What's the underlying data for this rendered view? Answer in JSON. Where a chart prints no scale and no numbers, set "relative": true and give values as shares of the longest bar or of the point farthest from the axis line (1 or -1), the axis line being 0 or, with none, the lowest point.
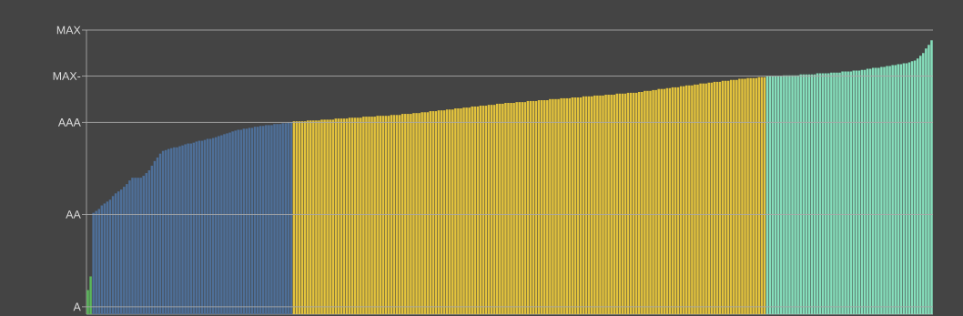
{
  "chart_data": {
    "type": "bar",
    "relative": true,
    "ref_lines": [
      {
        "axis": "y",
        "value": 0.027,
        "label": "A",
        "color": "#a8a8a8"
      },
      {
        "axis": "y",
        "value": 0.364,
        "label": "AA",
        "color": "#a8a8a8"
      },
      {
        "axis": "y",
        "value": 0.7,
        "label": "AAA",
        "color": "#a8a8a8"
      },
      {
        "axis": "y",
        "value": 0.869,
        "label": "MAX-",
        "color": "#a8a8a8"
      },
      {
        "axis": "y",
        "value": 1.037,
        "label": "MAX",
        "color": "#a8a8a8"
      }
    ],
    "categories": [
      null,
      null,
      null,
      null,
      null,
      null,
      null,
      null,
      null,
      null,
      null,
      null,
      null,
      null,
      null,
      null,
      null,
      null,
      null,
      null,
      null,
      null,
      null,
      null,
      null,
      null,
      null,
      null,
      null,
      null,
      null,
      null,
      null,
      null,
      null,
      null,
      null,
      null,
      null,
      null,
      null,
      null,
      null,
      null,
      null,
      null,
      null,
      null,
      null,
      null,
      null,
      null,
      null,
      null,
      null,
      null,
      null,
      null,
      null,
      null,
      null,
      null,
      null,
      null,
      null,
      null,
      null,
      null,
      null,
      null,
      null,
      null,
      null,
      null,
      null,
      null,
      null,
      null,
      null,
      null,
      null,
      null,
      null,
      null,
      null,
      null,
      null,
      null,
      null,
      null,
      null,
      null,
      null,
      null,
      null,
      null,
      null,
      null,
      null,
      null,
      null,
      null,
      null,
      null,
      null,
      null,
      null,
      null,
      null,
      null,
      null,
      null,
      null,
      null,
      null,
      null,
      null,
      null,
      null,
      null,
      null,
      null,
      null,
      null,
      null,
      null,
      null,
      null,
      null,
      null,
      null,
      null,
      null,
      null,
      null,
      null,
      null,
      null,
      null,
      null,
      null,
      null,
      null,
      null,
      null,
      null,
      null,
      null,
      null,
      null,
      null,
      null,
      null,
      null,
      null,
      null,
      null,
      null,
      null,
      null,
      null,
      null,
      null,
      null,
      null,
      null,
      null,
      null,
      null,
      null,
      null,
      null,
      null,
      null,
      null,
      null,
      null,
      null,
      null,
      null,
      null,
      null,
      null,
      null,
      null,
      null,
      null,
      null,
      null,
      null,
      null,
      null,
      null,
      null,
      null,
      null,
      null,
      null,
      null,
      null,
      null,
      null,
      null,
      null,
      null,
      null,
      null,
      null,
      null,
      null,
      null,
      null,
      null,
      null,
      null,
      null,
      null,
      null,
      null,
      null,
      null,
      null,
      null,
      null,
      null,
      null,
      null,
      null,
      null,
      null,
      null,
      null,
      null,
      null,
      null,
      null,
      null,
      null,
      null,
      null,
      null,
      null,
      null,
      null,
      null,
      null,
      null,
      null,
      null,
      null,
      null,
      null,
      null,
      null,
      null,
      null,
      null,
      null,
      null,
      null,
      null,
      null,
      null,
      null,
      null,
      null,
      null,
      null,
      null,
      null,
      null,
      null,
      null,
      null,
      null,
      null,
      null,
      null,
      null,
      null,
      null,
      null,
      null,
      null,
      null,
      null,
      null,
      null,
      null,
      null,
      null,
      null,
      null,
      null,
      null,
      null,
      null,
      null,
      null,
      null,
      null,
      null,
      null,
      null
    ],
    "values": [
      0.088,
      0.138,
      0.37,
      0.377,
      0.384,
      0.397,
      0.404,
      0.411,
      0.418,
      0.431,
      0.441,
      0.448,
      0.455,
      0.465,
      0.475,
      0.488,
      0.498,
      0.498,
      0.498,
      0.498,
      0.505,
      0.515,
      0.525,
      0.542,
      0.559,
      0.572,
      0.586,
      0.596,
      0.599,
      0.603,
      0.606,
      0.609,
      0.609,
      0.613,
      0.616,
      0.62,
      0.623,
      0.623,
      0.626,
      0.63,
      0.633,
      0.633,
      0.636,
      0.64,
      0.64,
      0.643,
      0.646,
      0.65,
      0.653,
      0.657,
      0.66,
      0.663,
      0.667,
      0.67,
      0.673,
      0.673,
      0.677,
      0.677,
      0.68,
      0.68,
      0.684,
      0.684,
      0.687,
      0.687,
      0.69,
      0.69,
      0.69,
      0.694,
      0.694,
      0.694,
      0.697,
      0.697,
      0.7,
      0.7,
      0.704,
      0.704,
      0.704,
      0.704,
      0.704,
      0.707,
      0.707,
      0.707,
      0.707,
      0.707,
      0.71,
      0.71,
      0.71,
      0.71,
      0.71,
      0.714,
      0.714,
      0.714,
      0.714,
      0.714,
      0.717,
      0.717,
      0.717,
      0.717,
      0.717,
      0.721,
      0.721,
      0.721,
      0.721,
      0.721,
      0.724,
      0.724,
      0.724,
      0.724,
      0.724,
      0.727,
      0.727,
      0.727,
      0.727,
      0.731,
      0.731,
      0.731,
      0.731,
      0.734,
      0.734,
      0.734,
      0.737,
      0.737,
      0.737,
      0.741,
      0.741,
      0.741,
      0.744,
      0.744,
      0.744,
      0.747,
      0.747,
      0.747,
      0.751,
      0.751,
      0.751,
      0.754,
      0.754,
      0.754,
      0.758,
      0.758,
      0.758,
      0.761,
      0.761,
      0.761,
      0.764,
      0.764,
      0.764,
      0.768,
      0.768,
      0.768,
      0.771,
      0.771,
      0.771,
      0.771,
      0.774,
      0.774,
      0.774,
      0.774,
      0.778,
      0.778,
      0.778,
      0.778,
      0.781,
      0.781,
      0.781,
      0.781,
      0.785,
      0.785,
      0.785,
      0.785,
      0.788,
      0.788,
      0.788,
      0.788,
      0.791,
      0.791,
      0.791,
      0.791,
      0.795,
      0.795,
      0.795,
      0.795,
      0.798,
      0.798,
      0.798,
      0.798,
      0.801,
      0.801,
      0.801,
      0.801,
      0.805,
      0.805,
      0.805,
      0.805,
      0.808,
      0.808,
      0.808,
      0.808,
      0.811,
      0.811,
      0.815,
      0.815,
      0.815,
      0.818,
      0.818,
      0.822,
      0.822,
      0.822,
      0.825,
      0.825,
      0.828,
      0.828,
      0.828,
      0.832,
      0.832,
      0.835,
      0.835,
      0.835,
      0.838,
      0.838,
      0.842,
      0.842,
      0.842,
      0.845,
      0.845,
      0.848,
      0.848,
      0.848,
      0.852,
      0.852,
      0.852,
      0.855,
      0.855,
      0.855,
      0.859,
      0.859,
      0.859,
      0.862,
      0.862,
      0.862,
      0.862,
      0.865,
      0.865,
      0.865,
      0.869,
      0.869,
      0.869,
      0.869,
      0.869,
      0.869,
      0.872,
      0.872,
      0.872,
      0.872,
      0.872,
      0.872,
      0.875,
      0.875,
      0.875,
      0.875,
      0.875,
      0.875,
      0.879,
      0.879,
      0.879,
      0.879,
      0.879,
      0.882,
      0.882,
      0.882,
      0.882,
      0.886,
      0.886,
      0.886,
      0.886,
      0.889,
      0.889,
      0.889,
      0.892,
      0.892,
      0.896,
      0.896,
      0.899,
      0.899,
      0.899,
      0.902,
      0.902,
      0.906,
      0.906,
      0.909,
      0.909,
      0.912,
      0.912,
      0.916,
      0.916,
      0.919,
      0.923,
      0.926,
      0.933,
      0.943,
      0.953,
      0.97,
      0.983,
      1.0
    ],
    "colors": [
      "#5cb85c",
      "#5cb85c",
      "#4e6f98",
      "#4e6f98",
      "#4e6f98",
      "#4e6f98",
      "#4e6f98",
      "#4e6f98",
      "#4e6f98",
      "#4e6f98",
      "#4e6f98",
      "#4e6f98",
      "#4e6f98",
      "#4e6f98",
      "#4e6f98",
      "#4e6f98",
      "#4e6f98",
      "#4e6f98",
      "#4e6f98",
      "#4e6f98",
      "#4e6f98",
      "#4e6f98",
      "#4e6f98",
      "#4e6f98",
      "#4e6f98",
      "#4e6f98",
      "#4e6f98",
      "#4e6f98",
      "#4e6f98",
      "#4e6f98",
      "#4e6f98",
      "#4e6f98",
      "#4e6f98",
      "#4e6f98",
      "#4e6f98",
      "#4e6f98",
      "#4e6f98",
      "#4e6f98",
      "#4e6f98",
      "#4e6f98",
      "#4e6f98",
      "#4e6f98",
      "#4e6f98",
      "#4e6f98",
      "#4e6f98",
      "#4e6f98",
      "#4e6f98",
      "#4e6f98",
      "#4e6f98",
      "#4e6f98",
      "#4e6f98",
      "#4e6f98",
      "#4e6f98",
      "#4e6f98",
      "#4e6f98",
      "#4e6f98",
      "#4e6f98",
      "#4e6f98",
      "#4e6f98",
      "#4e6f98",
      "#4e6f98",
      "#4e6f98",
      "#4e6f98",
      "#4e6f98",
      "#4e6f98",
      "#4e6f98",
      "#4e6f98",
      "#4e6f98",
      "#4e6f98",
      "#4e6f98",
      "#4e6f98",
      "#4e6f98",
      "#4e6f98",
      "#4e6f98",
      "#e3c33d",
      "#e3c33d",
      "#e3c33d",
      "#e3c33d",
      "#e3c33d",
      "#e3c33d",
      "#e3c33d",
      "#e3c33d",
      "#e3c33d",
      "#e3c33d",
      "#e3c33d",
      "#e3c33d",
      "#e3c33d",
      "#e3c33d",
      "#e3c33d",
      "#e3c33d",
      "#e3c33d",
      "#e3c33d",
      "#e3c33d",
      "#e3c33d",
      "#e3c33d",
      "#e3c33d",
      "#e3c33d",
      "#e3c33d",
      "#e3c33d",
      "#e3c33d",
      "#e3c33d",
      "#e3c33d",
      "#e3c33d",
      "#e3c33d",
      "#e3c33d",
      "#e3c33d",
      "#e3c33d",
      "#e3c33d",
      "#e3c33d",
      "#e3c33d",
      "#e3c33d",
      "#e3c33d",
      "#e3c33d",
      "#e3c33d",
      "#e3c33d",
      "#e3c33d",
      "#e3c33d",
      "#e3c33d",
      "#e3c33d",
      "#e3c33d",
      "#e3c33d",
      "#e3c33d",
      "#e3c33d",
      "#e3c33d",
      "#e3c33d",
      "#e3c33d",
      "#e3c33d",
      "#e3c33d",
      "#e3c33d",
      "#e3c33d",
      "#e3c33d",
      "#e3c33d",
      "#e3c33d",
      "#e3c33d",
      "#e3c33d",
      "#e3c33d",
      "#e3c33d",
      "#e3c33d",
      "#e3c33d",
      "#e3c33d",
      "#e3c33d",
      "#e3c33d",
      "#e3c33d",
      "#e3c33d",
      "#e3c33d",
      "#e3c33d",
      "#e3c33d",
      "#e3c33d",
      "#e3c33d",
      "#e3c33d",
      "#e3c33d",
      "#e3c33d",
      "#e3c33d",
      "#e3c33d",
      "#e3c33d",
      "#e3c33d",
      "#e3c33d",
      "#e3c33d",
      "#e3c33d",
      "#e3c33d",
      "#e3c33d",
      "#e3c33d",
      "#e3c33d",
      "#e3c33d",
      "#e3c33d",
      "#e3c33d",
      "#e3c33d",
      "#e3c33d",
      "#e3c33d",
      "#e3c33d",
      "#e3c33d",
      "#e3c33d",
      "#e3c33d",
      "#e3c33d",
      "#e3c33d",
      "#e3c33d",
      "#e3c33d",
      "#e3c33d",
      "#e3c33d",
      "#e3c33d",
      "#e3c33d",
      "#e3c33d",
      "#e3c33d",
      "#e3c33d",
      "#e3c33d",
      "#e3c33d",
      "#e3c33d",
      "#e3c33d",
      "#e3c33d",
      "#e3c33d",
      "#e3c33d",
      "#e3c33d",
      "#e3c33d",
      "#e3c33d",
      "#e3c33d",
      "#e3c33d",
      "#e3c33d",
      "#e3c33d",
      "#e3c33d",
      "#e3c33d",
      "#e3c33d",
      "#e3c33d",
      "#e3c33d",
      "#e3c33d",
      "#e3c33d",
      "#e3c33d",
      "#e3c33d",
      "#e3c33d",
      "#e3c33d",
      "#e3c33d",
      "#e3c33d",
      "#e3c33d",
      "#e3c33d",
      "#e3c33d",
      "#e3c33d",
      "#e3c33d",
      "#e3c33d",
      "#e3c33d",
      "#e3c33d",
      "#e3c33d",
      "#e3c33d",
      "#e3c33d",
      "#e3c33d",
      "#e3c33d",
      "#e3c33d",
      "#e3c33d",
      "#e3c33d",
      "#e3c33d",
      "#e3c33d",
      "#e3c33d",
      "#e3c33d",
      "#e3c33d",
      "#e3c33d",
      "#e3c33d",
      "#e3c33d",
      "#e3c33d",
      "#e3c33d",
      "#e3c33d",
      "#e3c33d",
      "#e3c33d",
      "#e3c33d",
      "#e3c33d",
      "#e3c33d",
      "#e3c33d",
      "#86dfbc",
      "#86dfbc",
      "#86dfbc",
      "#86dfbc",
      "#86dfbc",
      "#86dfbc",
      "#86dfbc",
      "#86dfbc",
      "#86dfbc",
      "#86dfbc",
      "#86dfbc",
      "#86dfbc",
      "#86dfbc",
      "#86dfbc",
      "#86dfbc",
      "#86dfbc",
      "#86dfbc",
      "#86dfbc",
      "#86dfbc",
      "#86dfbc",
      "#86dfbc",
      "#86dfbc",
      "#86dfbc",
      "#86dfbc",
      "#86dfbc",
      "#86dfbc",
      "#86dfbc",
      "#86dfbc",
      "#86dfbc",
      "#86dfbc",
      "#86dfbc",
      "#86dfbc",
      "#86dfbc",
      "#86dfbc",
      "#86dfbc",
      "#86dfbc",
      "#86dfbc",
      "#86dfbc",
      "#86dfbc",
      "#86dfbc",
      "#86dfbc",
      "#86dfbc",
      "#86dfbc",
      "#86dfbc",
      "#86dfbc",
      "#86dfbc",
      "#86dfbc",
      "#86dfbc",
      "#86dfbc",
      "#86dfbc",
      "#86dfbc",
      "#86dfbc",
      "#86dfbc",
      "#86dfbc",
      "#86dfbc",
      "#86dfbc",
      "#86dfbc",
      "#86dfbc",
      "#86dfbc",
      "#86dfbc"
    ]
  }
}
